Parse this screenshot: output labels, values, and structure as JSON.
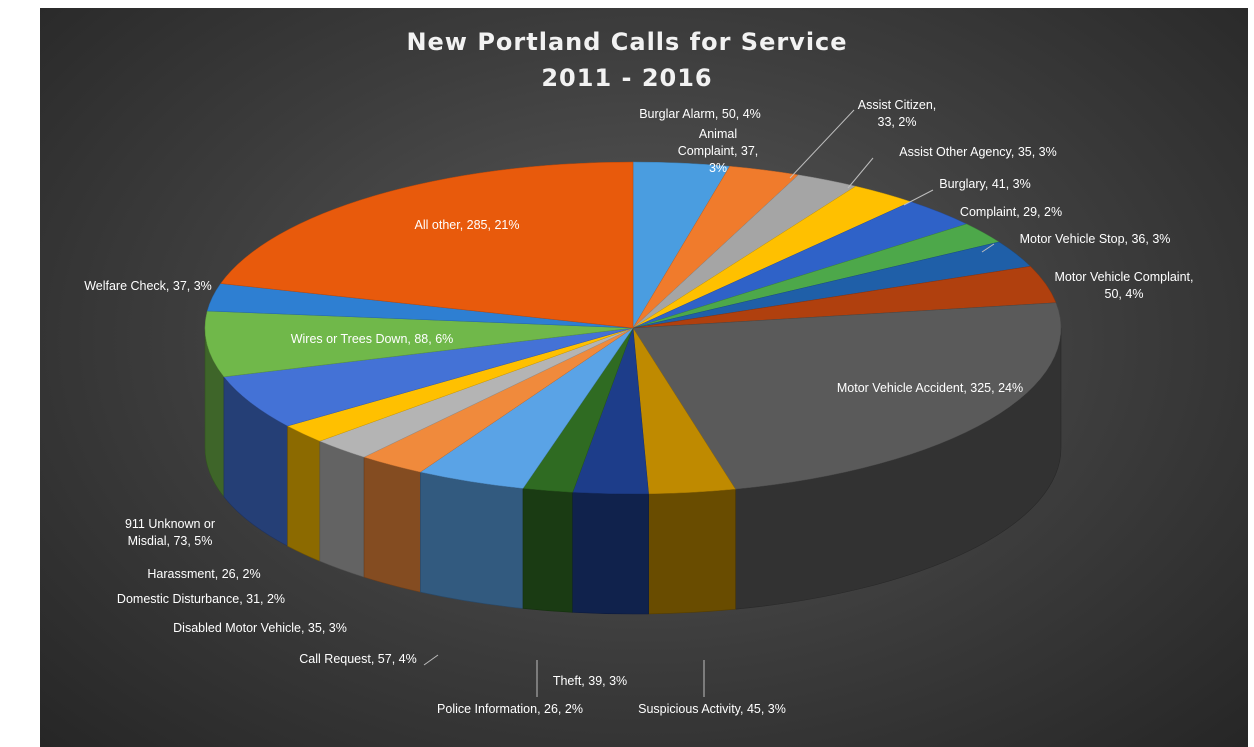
{
  "chart_data": {
    "type": "pie",
    "title": [
      "New Portland  Calls for Service",
      "2011 - 2016"
    ],
    "slices": [
      {
        "label": "Burglar Alarm",
        "value": 50,
        "percent": "4%",
        "color": "#4a9de0"
      },
      {
        "label": "Animal Complaint",
        "value": 37,
        "percent": "3%",
        "color": "#f07b2c"
      },
      {
        "label": "Assist Citizen",
        "value": 33,
        "percent": "2%",
        "color": "#a5a5a5"
      },
      {
        "label": "Assist Other Agency",
        "value": 35,
        "percent": "3%",
        "color": "#ffc000"
      },
      {
        "label": "Burglary",
        "value": 41,
        "percent": "3%",
        "color": "#2f62c8"
      },
      {
        "label": "Complaint",
        "value": 29,
        "percent": "2%",
        "color": "#4da84a"
      },
      {
        "label": "Motor Vehicle Stop",
        "value": 36,
        "percent": "3%",
        "color": "#1f5fa8"
      },
      {
        "label": "Motor Vehicle Complaint",
        "value": 50,
        "percent": "4%",
        "color": "#b0400e"
      },
      {
        "label": "Motor Vehicle Accident",
        "value": 325,
        "percent": "24%",
        "color": "#5a5a5a"
      },
      {
        "label": "Suspicious Activity",
        "value": 45,
        "percent": "3%",
        "color": "#bf8a00"
      },
      {
        "label": "Theft",
        "value": 39,
        "percent": "3%",
        "color": "#1d3d8a"
      },
      {
        "label": "Police Information",
        "value": 26,
        "percent": "2%",
        "color": "#2f6b22"
      },
      {
        "label": "Call Request",
        "value": 57,
        "percent": "4%",
        "color": "#5aa3e6"
      },
      {
        "label": "Disabled Motor Vehicle",
        "value": 35,
        "percent": "3%",
        "color": "#f08a3c"
      },
      {
        "label": "Domestic Disturbance",
        "value": 31,
        "percent": "2%",
        "color": "#b4b4b4"
      },
      {
        "label": "Harassment",
        "value": 26,
        "percent": "2%",
        "color": "#ffc000"
      },
      {
        "label": "911 Unknown or Misdial",
        "value": 73,
        "percent": "5%",
        "color": "#4472d6"
      },
      {
        "label": "Wires or Trees Down",
        "value": 88,
        "percent": "6%",
        "color": "#70b84a"
      },
      {
        "label": "Welfare Check",
        "value": 37,
        "percent": "3%",
        "color": "#2e7fd2"
      },
      {
        "label": "All other",
        "value": 285,
        "percent": "21%",
        "color": "#e85a0c"
      }
    ],
    "labels": [
      {
        "lines": [
          "Burglar Alarm, 50, 4%"
        ]
      },
      {
        "lines": [
          "Animal",
          "Complaint, 37,",
          "3%"
        ]
      },
      {
        "lines": [
          "Assist Citizen,",
          "33, 2%"
        ]
      },
      {
        "lines": [
          "Assist Other Agency, 35, 3%"
        ]
      },
      {
        "lines": [
          "Burglary, 41, 3%"
        ]
      },
      {
        "lines": [
          "Complaint, 29, 2%"
        ]
      },
      {
        "lines": [
          "Motor Vehicle Stop, 36, 3%"
        ]
      },
      {
        "lines": [
          "Motor Vehicle Complaint,",
          "50, 4%"
        ]
      },
      {
        "lines": [
          "Motor Vehicle Accident, 325, 24%"
        ]
      },
      {
        "lines": [
          "Suspicious Activity, 45, 3%"
        ]
      },
      {
        "lines": [
          "Theft, 39, 3%"
        ]
      },
      {
        "lines": [
          "Police Information, 26, 2%"
        ]
      },
      {
        "lines": [
          "Call Request, 57, 4%"
        ]
      },
      {
        "lines": [
          "Disabled Motor Vehicle, 35, 3%"
        ]
      },
      {
        "lines": [
          "Domestic Disturbance, 31, 2%"
        ]
      },
      {
        "lines": [
          "Harassment, 26, 2%"
        ]
      },
      {
        "lines": [
          "911 Unknown or",
          "Misdial, 73, 5%"
        ]
      },
      {
        "lines": [
          "Wires or Trees Down, 88, 6%"
        ]
      },
      {
        "lines": [
          "Welfare Check, 37, 3%"
        ]
      },
      {
        "lines": [
          "All other, 285, 21%"
        ]
      }
    ]
  }
}
